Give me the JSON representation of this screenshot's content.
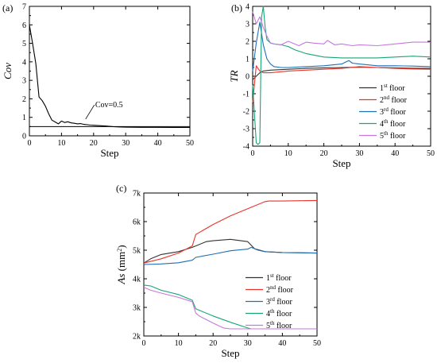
{
  "chart_data": [
    {
      "panel_label": "(a)",
      "type": "line",
      "xlabel": "Step",
      "ylabel": "Cov",
      "xlim": [
        0,
        50
      ],
      "ylim": [
        0,
        7
      ],
      "xticks": [
        0,
        10,
        20,
        30,
        40,
        50
      ],
      "yticks": [
        0,
        1,
        2,
        3,
        4,
        5,
        6,
        7
      ],
      "threshold": {
        "y": 0.5,
        "color": "#000000"
      },
      "annotation": "Cov=0.5",
      "series": [
        {
          "color": "#000000",
          "x": [
            0,
            1,
            2,
            3,
            4,
            5,
            6,
            7,
            8,
            9,
            10,
            11,
            12,
            13,
            14,
            15,
            16,
            17,
            18,
            19,
            20,
            22,
            24,
            26,
            28,
            30,
            35,
            40,
            45,
            50
          ],
          "y": [
            6.0,
            5.0,
            3.9,
            2.1,
            1.9,
            1.6,
            1.2,
            0.85,
            0.75,
            0.65,
            0.8,
            0.72,
            0.76,
            0.7,
            0.68,
            0.65,
            0.66,
            0.62,
            0.6,
            0.58,
            0.57,
            0.55,
            0.53,
            0.5,
            0.48,
            0.47,
            0.46,
            0.46,
            0.45,
            0.45
          ]
        }
      ]
    },
    {
      "panel_label": "(b)",
      "type": "line",
      "xlabel": "Step",
      "ylabel": "TR",
      "xlim": [
        0,
        50
      ],
      "ylim": [
        -4,
        4
      ],
      "xticks": [
        0,
        10,
        20,
        30,
        40,
        50
      ],
      "yticks": [
        -4,
        -3,
        -2,
        -1,
        0,
        1,
        2,
        3,
        4
      ],
      "legend_position": "lower-right",
      "series": [
        {
          "name": "1st floor",
          "base": "1",
          "sup": "st",
          "rest": " floor",
          "color": "#333333",
          "x": [
            0,
            1,
            2,
            3,
            5,
            10,
            15,
            20,
            25,
            30,
            35,
            40,
            45,
            50
          ],
          "y": [
            -0.2,
            0.0,
            0.2,
            0.3,
            0.35,
            0.4,
            0.45,
            0.48,
            0.5,
            0.52,
            0.5,
            0.48,
            0.46,
            0.45
          ]
        },
        {
          "name": "2nd floor",
          "base": "2",
          "sup": "nd",
          "rest": " floor",
          "color": "#e8352c",
          "x": [
            0,
            1,
            2,
            3,
            5,
            10,
            15,
            20,
            25,
            30,
            35,
            40,
            45,
            50
          ],
          "y": [
            -1.5,
            0.6,
            0.3,
            0.2,
            0.2,
            0.3,
            0.35,
            0.4,
            0.45,
            0.55,
            0.5,
            0.45,
            0.42,
            0.4
          ]
        },
        {
          "name": "3rd floor",
          "base": "3",
          "sup": "rd",
          "rest": " floor",
          "color": "#1f6fb5",
          "x": [
            0,
            1,
            2,
            3,
            4,
            5,
            6,
            8,
            10,
            15,
            20,
            25,
            27,
            28,
            30,
            35,
            40,
            45,
            50
          ],
          "y": [
            0.3,
            1.9,
            3.1,
            1.8,
            1.0,
            0.7,
            0.55,
            0.5,
            0.5,
            0.55,
            0.6,
            0.7,
            0.9,
            0.75,
            0.7,
            0.6,
            0.6,
            0.58,
            0.55
          ]
        },
        {
          "name": "4th floor",
          "base": "4",
          "sup": "th",
          "rest": " floor",
          "color": "#1aa37a",
          "x": [
            0,
            1,
            1.5,
            2,
            2.5,
            3,
            3.5,
            4,
            5,
            6,
            8,
            10,
            12,
            15,
            20,
            25,
            30,
            35,
            40,
            45,
            50
          ],
          "y": [
            -0.5,
            -3.8,
            -3.9,
            -3.8,
            3.4,
            4.0,
            2.8,
            2.1,
            1.9,
            1.85,
            1.8,
            1.7,
            1.5,
            1.3,
            1.1,
            1.05,
            1.05,
            1.05,
            1.1,
            1.15,
            1.1
          ]
        },
        {
          "name": "5th floor",
          "base": "5",
          "sup": "th",
          "rest": " floor",
          "color": "#c678dd",
          "x": [
            0,
            1,
            2,
            3,
            4,
            5,
            6,
            8,
            10,
            13,
            15,
            17,
            20,
            21,
            23,
            25,
            28,
            30,
            35,
            40,
            45,
            50
          ],
          "y": [
            3.7,
            3.0,
            3.4,
            2.8,
            2.3,
            1.9,
            1.85,
            1.8,
            2.0,
            1.75,
            1.95,
            1.9,
            1.85,
            2.05,
            1.8,
            1.85,
            1.75,
            1.8,
            1.75,
            1.85,
            1.95,
            1.95
          ]
        }
      ]
    },
    {
      "panel_label": "(c)",
      "type": "line",
      "xlabel": "Step",
      "ylabel_main": "As",
      "ylabel_unit_pre": " (mm",
      "ylabel_unit_sup": "2",
      "ylabel_unit_post": ")",
      "xlim": [
        0,
        50
      ],
      "ylim": [
        2000,
        7000
      ],
      "xticks": [
        0,
        10,
        20,
        30,
        40,
        50
      ],
      "yticks": [
        2000,
        3000,
        4000,
        5000,
        6000,
        7000
      ],
      "ytick_labels": [
        "2k",
        "3k",
        "4k",
        "5k",
        "6k",
        "7k"
      ],
      "legend_position": "lower-right",
      "series": [
        {
          "name": "1st floor",
          "base": "1",
          "sup": "st",
          "rest": " floor",
          "color": "#333333",
          "x": [
            0,
            2,
            5,
            10,
            14,
            15,
            18,
            20,
            25,
            30,
            32,
            35,
            40,
            45,
            50
          ],
          "y": [
            4550,
            4700,
            4850,
            4950,
            5100,
            5150,
            5300,
            5330,
            5380,
            5300,
            5050,
            4950,
            4920,
            4910,
            4900
          ]
        },
        {
          "name": "2nd floor",
          "base": "2",
          "sup": "nd",
          "rest": " floor",
          "color": "#e8352c",
          "x": [
            0,
            5,
            10,
            14,
            15,
            20,
            25,
            30,
            35,
            36,
            40,
            45,
            50
          ],
          "y": [
            4550,
            4700,
            4900,
            5150,
            5550,
            5900,
            6200,
            6450,
            6700,
            6720,
            6720,
            6730,
            6740
          ]
        },
        {
          "name": "3rd floor",
          "base": "3",
          "sup": "rd",
          "rest": " floor",
          "color": "#1f6fb5",
          "x": [
            0,
            5,
            10,
            14,
            15,
            20,
            25,
            30,
            31,
            33,
            35,
            40,
            45,
            50
          ],
          "y": [
            4500,
            4520,
            4560,
            4650,
            4750,
            4860,
            4980,
            5040,
            5100,
            5000,
            4950,
            4920,
            4910,
            4900
          ]
        },
        {
          "name": "4th floor",
          "base": "4",
          "sup": "th",
          "rest": " floor",
          "color": "#1aa37a",
          "x": [
            0,
            2,
            5,
            10,
            14,
            15,
            16,
            20,
            25,
            30,
            31,
            35,
            40,
            45,
            50
          ],
          "y": [
            3780,
            3750,
            3600,
            3450,
            3250,
            2950,
            2900,
            2700,
            2480,
            2280,
            2250,
            2250,
            2250,
            2250,
            2250
          ]
        },
        {
          "name": "5th floor",
          "base": "5",
          "sup": "th",
          "rest": " floor",
          "color": "#c678dd",
          "x": [
            0,
            2,
            5,
            10,
            14,
            15,
            16,
            20,
            23,
            25,
            30,
            35,
            40,
            45,
            50
          ],
          "y": [
            3700,
            3600,
            3500,
            3350,
            3200,
            2800,
            2700,
            2450,
            2280,
            2250,
            2250,
            2250,
            2250,
            2250,
            2250
          ]
        }
      ]
    }
  ]
}
